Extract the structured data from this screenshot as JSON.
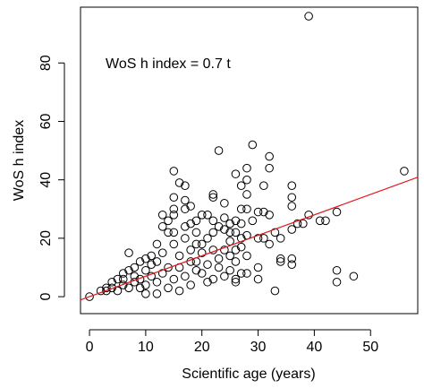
{
  "chart_data": {
    "type": "scatter",
    "annotation": "WoS h index = 0.7 t",
    "x_label": "Scientific age (years)",
    "y_label": "WoS h index",
    "xlim": [
      -1.6,
      58.4
    ],
    "ylim": [
      -5.8,
      99.1
    ],
    "xticks": [
      0,
      10,
      20,
      30,
      40,
      50
    ],
    "yticks": [
      0,
      20,
      40,
      60,
      80
    ],
    "fit": {
      "slope": 0.7,
      "color": "#e31a1c"
    },
    "series": [
      {
        "color": "#000000",
        "x": [
          0,
          2,
          3,
          39,
          56,
          47,
          44,
          44,
          44,
          42,
          41,
          39,
          38,
          37,
          36,
          36,
          36,
          36,
          36,
          36,
          34,
          34,
          33,
          33,
          32,
          32,
          32,
          31,
          31,
          31,
          30,
          30,
          30,
          29,
          29,
          28,
          28,
          28,
          28,
          28,
          28,
          27,
          27,
          27,
          27,
          27,
          26,
          26,
          26,
          26,
          26,
          26,
          25,
          25,
          25,
          24,
          24,
          24,
          23,
          23,
          22,
          22,
          22,
          22,
          21,
          21,
          20,
          19,
          19,
          18,
          18,
          17,
          17,
          17,
          16,
          15,
          15,
          15,
          15,
          14,
          14,
          13,
          13,
          12,
          11,
          10,
          9,
          8,
          7,
          7,
          6,
          5,
          4,
          4,
          3,
          5,
          6,
          7,
          8,
          9,
          10,
          11,
          12,
          13,
          14,
          15,
          16,
          17,
          18,
          19,
          20,
          21,
          22,
          23,
          24,
          25,
          14,
          12,
          10,
          8,
          16,
          18,
          20,
          17,
          19,
          15,
          13,
          11,
          9,
          6,
          21,
          23,
          20,
          18,
          16,
          12,
          10,
          15,
          17,
          19,
          22,
          24,
          26,
          28,
          30,
          32,
          34,
          25,
          27
        ],
        "y": [
          0,
          2,
          3,
          96,
          43,
          7,
          9,
          5,
          29,
          26,
          26,
          28,
          25,
          25,
          38,
          34,
          31,
          23,
          11,
          13,
          13,
          12,
          22,
          2,
          48,
          44,
          28,
          38,
          29,
          20,
          6,
          20,
          29,
          52,
          26,
          44,
          40,
          35,
          30,
          21,
          8,
          38,
          25,
          20,
          17,
          8,
          42,
          26,
          22,
          16,
          6,
          5,
          22,
          19,
          14,
          32,
          27,
          23,
          50,
          24,
          35,
          34,
          26,
          22,
          28,
          20,
          28,
          26,
          18,
          31,
          25,
          33,
          38,
          30,
          39,
          43,
          34,
          30,
          28,
          26,
          22,
          28,
          24,
          18,
          14,
          13,
          12,
          10,
          15,
          9,
          8,
          6,
          5,
          3,
          2,
          2,
          4,
          3,
          5,
          6,
          4,
          7,
          5,
          8,
          3,
          6,
          10,
          7,
          12,
          9,
          15,
          11,
          16,
          13,
          7,
          9,
          10,
          12,
          9,
          7,
          14,
          16,
          18,
          20,
          22,
          18,
          15,
          11,
          3,
          6,
          5,
          10,
          8,
          4,
          2,
          1,
          1,
          22,
          24,
          12,
          6,
          16,
          12,
          14,
          10,
          18,
          20,
          25,
          30
        ]
      }
    ]
  }
}
